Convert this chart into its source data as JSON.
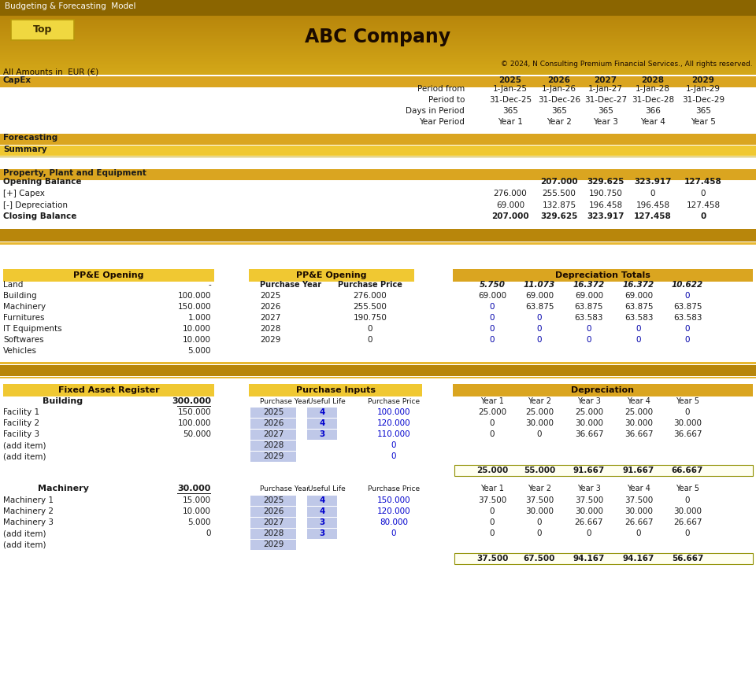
{
  "title": "ABC Company",
  "header_title": "Budgeting & Forecasting  Model",
  "copyright": "© 2024, N Consulting Premium Financial Services., All rights reserved.",
  "currency_note": "All Amounts in  EUR (€)",
  "capex_label": "CapEx",
  "years": [
    "2025",
    "2026",
    "2027",
    "2028",
    "2029"
  ],
  "period_from": [
    "1-Jan-25",
    "1-Jan-26",
    "1-Jan-27",
    "1-Jan-28",
    "1-Jan-29"
  ],
  "period_to": [
    "31-Dec-25",
    "31-Dec-26",
    "31-Dec-27",
    "31-Dec-28",
    "31-Dec-29"
  ],
  "days_in_period": [
    "365",
    "365",
    "365",
    "366",
    "365"
  ],
  "year_period": [
    "Year 1",
    "Year 2",
    "Year 3",
    "Year 4",
    "Year 5"
  ],
  "forecasting_label": "Forecasting",
  "summary_label": "Summary",
  "ppe_label": "Property, Plant and Equipment",
  "ppe_rows": [
    {
      "label": "Opening Balance",
      "values": [
        "",
        "207.000",
        "329.625",
        "323.917",
        "127.458"
      ],
      "bold": true
    },
    {
      "label": "[+] Capex",
      "values": [
        "276.000",
        "255.500",
        "190.750",
        "0",
        "0"
      ],
      "bold": false
    },
    {
      "label": "[-] Depreciation",
      "values": [
        "69.000",
        "132.875",
        "196.458",
        "196.458",
        "127.458"
      ],
      "bold": false
    },
    {
      "label": "Closing Balance",
      "values": [
        "207.000",
        "329.625",
        "323.917",
        "127.458",
        "0"
      ],
      "bold": true
    }
  ],
  "ppe_opening_items": [
    {
      "label": "Land",
      "value": "-"
    },
    {
      "label": "Building",
      "value": "100.000"
    },
    {
      "label": "Machinery",
      "value": "150.000"
    },
    {
      "label": "Furnitures",
      "value": "1.000"
    },
    {
      "label": "IT Equipments",
      "value": "10.000"
    },
    {
      "label": "Softwares",
      "value": "10.000"
    },
    {
      "label": "Vehicles",
      "value": "5.000"
    }
  ],
  "ppe_opening2_rows": [
    {
      "year": "Purchase Year",
      "price": "Purchase Price",
      "header": true
    },
    {
      "year": "2025",
      "price": "276.000",
      "header": false
    },
    {
      "year": "2026",
      "price": "255.500",
      "header": false
    },
    {
      "year": "2027",
      "price": "190.750",
      "header": false
    },
    {
      "year": "2028",
      "price": "0",
      "header": false
    },
    {
      "year": "2029",
      "price": "0",
      "header": false
    }
  ],
  "dep_totals_header": [
    "5.750",
    "11.073",
    "16.372",
    "16.372",
    "10.622"
  ],
  "dep_totals_rows": [
    [
      "69.000",
      "69.000",
      "69.000",
      "69.000",
      "0"
    ],
    [
      "0",
      "63.875",
      "63.875",
      "63.875",
      "63.875"
    ],
    [
      "0",
      "0",
      "63.583",
      "63.583",
      "63.583"
    ],
    [
      "0",
      "0",
      "0",
      "0",
      "0"
    ],
    [
      "0",
      "0",
      "0",
      "0",
      "0"
    ]
  ],
  "building_items": [
    {
      "name": "Facility 1",
      "value": "150.000"
    },
    {
      "name": "Facility 2",
      "value": "100.000"
    },
    {
      "name": "Facility 3",
      "value": "50.000"
    },
    {
      "name": "(add item)",
      "value": ""
    },
    {
      "name": "(add item)",
      "value": ""
    }
  ],
  "purchase_inputs_building": [
    {
      "year": "2025",
      "life": "4",
      "price": "100.000"
    },
    {
      "year": "2026",
      "life": "4",
      "price": "120.000"
    },
    {
      "year": "2027",
      "life": "3",
      "price": "110.000"
    },
    {
      "year": "2028",
      "life": "",
      "price": "0"
    },
    {
      "year": "2029",
      "life": "",
      "price": "0"
    }
  ],
  "dep_building_rows": [
    [
      "25.000",
      "25.000",
      "25.000",
      "25.000",
      "0"
    ],
    [
      "0",
      "30.000",
      "30.000",
      "30.000",
      "30.000"
    ],
    [
      "0",
      "0",
      "36.667",
      "36.667",
      "36.667"
    ],
    [
      "",
      "",
      "",
      "",
      ""
    ],
    [
      "",
      "",
      "",
      "",
      ""
    ]
  ],
  "dep_building_total": [
    "25.000",
    "55.000",
    "91.667",
    "91.667",
    "66.667"
  ],
  "machinery_items": [
    {
      "name": "Machinery 1",
      "value": "15.000"
    },
    {
      "name": "Machinery 2",
      "value": "10.000"
    },
    {
      "name": "Machinery 3",
      "value": "5.000"
    },
    {
      "name": "(add item)",
      "value": "0"
    },
    {
      "name": "(add item)",
      "value": ""
    }
  ],
  "purchase_inputs_machinery": [
    {
      "year": "2025",
      "life": "4",
      "price": "150.000"
    },
    {
      "year": "2026",
      "life": "4",
      "price": "120.000"
    },
    {
      "year": "2027",
      "life": "3",
      "price": "80.000"
    },
    {
      "year": "2028",
      "life": "3",
      "price": "0"
    },
    {
      "year": "2029",
      "life": "",
      "price": ""
    }
  ],
  "dep_machinery_rows": [
    [
      "37.500",
      "37.500",
      "37.500",
      "37.500",
      "0"
    ],
    [
      "0",
      "30.000",
      "30.000",
      "30.000",
      "30.000"
    ],
    [
      "0",
      "0",
      "26.667",
      "26.667",
      "26.667"
    ],
    [
      "0",
      "0",
      "0",
      "0",
      "0"
    ],
    [
      "",
      "",
      "",
      "",
      ""
    ]
  ],
  "dep_machinery_total": [
    "37.500",
    "67.500",
    "94.167",
    "94.167",
    "56.667"
  ],
  "col_dark_gold": "#B8860B",
  "col_med_gold": "#C8950C",
  "col_gold_band": "#DAA520",
  "col_light_gold_band": "#E8B832",
  "col_yellow_band": "#F0C832",
  "col_pale_yellow": "#F5D060",
  "col_white": "#FFFFFF",
  "col_light_blue_cell": "#BFC8E8",
  "col_text_dark": "#1A1A1A",
  "col_text_blue": "#0000CD",
  "col_text_white": "#FFFFFF",
  "col_header_top": "#8B6500"
}
